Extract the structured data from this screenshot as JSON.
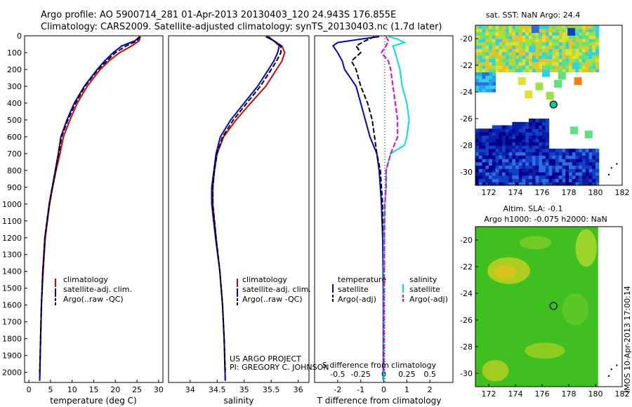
{
  "header": {
    "line1": "Argo profile: AO 5900714_281 01-Apr-2013 20130403_120 24.943S 176.855E",
    "line2": "Climatology: CARS2009. Satellite-adjusted climatology: synTS_20130403.nc (1.7d later)"
  },
  "colors": {
    "climatology": "#dd0000",
    "satellite": "#0000dd",
    "argo": "#000000",
    "cyan": "#00e0e0",
    "magenta": "#dd00dd"
  },
  "depth_ticks": [
    0,
    100,
    200,
    300,
    400,
    500,
    600,
    700,
    800,
    900,
    1000,
    1100,
    1200,
    1300,
    1400,
    1500,
    1600,
    1700,
    1800,
    1900,
    2000
  ],
  "chart_data": [
    {
      "type": "line",
      "name": "temperature-profile",
      "xlabel": "temperature (deg C)",
      "ylabel": "",
      "xlim": [
        -1,
        31
      ],
      "ylim": [
        2060,
        0
      ],
      "xticks": [
        0,
        5,
        10,
        15,
        20,
        25,
        30
      ],
      "legend": [
        "climatology",
        "satellite-adj. clim.",
        "Argo(..raw -QC)"
      ],
      "series": [
        {
          "key": "climatology",
          "depth": [
            5,
            30,
            60,
            100,
            150,
            200,
            300,
            400,
            500,
            600,
            700,
            800,
            900,
            1000,
            1200,
            1400,
            1600,
            1800,
            2050
          ],
          "values": [
            25.8,
            25.5,
            23.8,
            21.0,
            18.5,
            16.5,
            13.5,
            11.2,
            9.5,
            8.0,
            7.2,
            6.3,
            5.5,
            4.8,
            3.8,
            3.3,
            2.9,
            2.7,
            2.5
          ]
        },
        {
          "key": "satellite",
          "depth": [
            5,
            30,
            60,
            100,
            150,
            200,
            300,
            400,
            500,
            600,
            700,
            800,
            900,
            1000,
            1200,
            1400,
            1600,
            1800,
            2050
          ],
          "values": [
            25.6,
            24.5,
            21.5,
            19.5,
            17.5,
            15.8,
            12.8,
            10.5,
            8.8,
            7.4,
            6.8,
            6.1,
            5.4,
            4.7,
            3.7,
            3.2,
            2.9,
            2.7,
            2.5
          ]
        },
        {
          "key": "argo",
          "depth": [
            5,
            30,
            60,
            100,
            150,
            200,
            300,
            400,
            500,
            600,
            700,
            800,
            900,
            1000,
            1200,
            1400,
            1600,
            1800,
            2000
          ],
          "values": [
            25.7,
            25.0,
            22.5,
            20.0,
            18.0,
            16.0,
            13.0,
            10.8,
            9.0,
            7.6,
            6.9,
            6.2,
            5.4,
            4.7,
            3.7,
            3.2,
            2.9,
            2.7,
            2.5
          ]
        }
      ]
    },
    {
      "type": "line",
      "name": "salinity-profile",
      "xlabel": "salinity",
      "ylabel": "",
      "xlim": [
        33.6,
        36.2
      ],
      "ylim": [
        2060,
        0
      ],
      "xticks": [
        34,
        34.5,
        35,
        35.5,
        36
      ],
      "legend": [
        "climatology",
        "satellite-adj. clim.",
        "Argo(..raw -QC)"
      ],
      "annotations": [
        "US ARGO PROJECT",
        "PI: GREGORY C. JOHNSON"
      ],
      "series": [
        {
          "key": "climatology",
          "depth": [
            5,
            30,
            60,
            100,
            150,
            200,
            300,
            400,
            500,
            600,
            700,
            800,
            900,
            1000,
            1200,
            1400,
            1600,
            1800,
            2050
          ],
          "values": [
            35.45,
            35.55,
            35.7,
            35.75,
            35.7,
            35.6,
            35.4,
            35.12,
            34.85,
            34.62,
            34.5,
            34.45,
            34.42,
            34.42,
            34.48,
            34.55,
            34.6,
            34.63,
            34.65
          ]
        },
        {
          "key": "satellite",
          "depth": [
            5,
            30,
            60,
            100,
            150,
            200,
            300,
            400,
            500,
            600,
            700,
            800,
            900,
            1000,
            1200,
            1400,
            1600,
            1800,
            2050
          ],
          "values": [
            35.4,
            35.55,
            35.65,
            35.62,
            35.55,
            35.45,
            35.25,
            35.0,
            34.75,
            34.56,
            34.48,
            34.44,
            34.4,
            34.4,
            34.47,
            34.55,
            34.6,
            34.63,
            34.65
          ]
        },
        {
          "key": "argo",
          "depth": [
            5,
            30,
            60,
            100,
            150,
            200,
            300,
            400,
            500,
            600,
            700,
            800,
            900,
            1000,
            1200,
            1400,
            1600,
            1800,
            2000
          ],
          "values": [
            35.42,
            35.55,
            35.68,
            35.68,
            35.6,
            35.5,
            35.3,
            35.05,
            34.8,
            34.6,
            34.5,
            34.45,
            34.42,
            34.42,
            34.48,
            34.55,
            34.6,
            34.63,
            34.65
          ]
        }
      ]
    },
    {
      "type": "line",
      "name": "difference-profile",
      "xlabel": "T difference from climatology",
      "xlabel_top": "S difference from climatology",
      "xlim": [
        -3,
        3
      ],
      "ylim": [
        2060,
        0
      ],
      "xticks": [
        -2,
        -1,
        0,
        1,
        2
      ],
      "xticks_top_labels": [
        "-0.5",
        "-0.25",
        "0",
        "0.25",
        "0.5"
      ],
      "xticks_top_values": [
        -2,
        -1,
        0,
        1,
        2
      ],
      "legend_temperature_title": "temperature",
      "legend_salinity_title": "salinity",
      "legend_temperature": [
        "satellite",
        "Argo(-adj)"
      ],
      "legend_salinity": [
        "satellite",
        "Argo(-adj)"
      ],
      "series": [
        {
          "key": "t-satellite",
          "depth": [
            5,
            20,
            40,
            60,
            100,
            150,
            200,
            300,
            400,
            500,
            600,
            700,
            800,
            900,
            1000,
            1200,
            1400,
            1600,
            1800,
            2050
          ],
          "values": [
            -0.2,
            -1.0,
            -2.0,
            -2.2,
            -2.0,
            -1.8,
            -1.7,
            -1.2,
            -1.0,
            -0.8,
            -0.6,
            -0.3,
            -0.2,
            -0.15,
            -0.1,
            -0.05,
            -0.03,
            -0.02,
            -0.02,
            -0.02
          ]
        },
        {
          "key": "t-argo",
          "depth": [
            5,
            30,
            60,
            100,
            150,
            200,
            300,
            400,
            500,
            600,
            700,
            800,
            900,
            1000,
            1200,
            1400,
            1600,
            1800,
            2000
          ],
          "values": [
            -0.4,
            -0.8,
            -1.2,
            -1.0,
            -1.4,
            -1.2,
            -1.0,
            -0.7,
            -0.5,
            -0.4,
            -0.3,
            -0.15,
            -0.1,
            -0.05,
            -0.03,
            -0.02,
            -0.01,
            -0.01,
            -0.01
          ]
        },
        {
          "key": "s-satellite",
          "depth": [
            5,
            20,
            40,
            60,
            100,
            200,
            300,
            400,
            500,
            600,
            650,
            700,
            800,
            900,
            1000,
            1200,
            1400,
            1600,
            1800,
            2050
          ],
          "values": [
            0.2,
            0.6,
            0.9,
            0.4,
            0.5,
            0.7,
            0.8,
            1.0,
            1.1,
            1.0,
            0.9,
            0.3,
            0.1,
            0.1,
            0.05,
            0.0,
            0.0,
            0.0,
            0.0,
            0.0
          ]
        },
        {
          "key": "s-argo",
          "depth": [
            5,
            30,
            60,
            100,
            150,
            200,
            300,
            400,
            500,
            600,
            700,
            800,
            900,
            1000,
            1200,
            1400,
            1600,
            1800,
            2000
          ],
          "values": [
            0.1,
            0.2,
            0.1,
            -0.1,
            0.2,
            0.3,
            0.4,
            0.5,
            0.6,
            0.6,
            0.3,
            0.1,
            0.1,
            0.05,
            0.03,
            0.02,
            0.01,
            0.01,
            0.0
          ]
        }
      ]
    },
    {
      "type": "heatmap",
      "name": "sst-map",
      "title": "sat. SST: NaN Argo: 24.4",
      "xlim": [
        171,
        182
      ],
      "ylim": [
        -31,
        -19
      ],
      "xticks": [
        172,
        174,
        176,
        178,
        180,
        182
      ],
      "yticks": [
        -20,
        -22,
        -24,
        -26,
        -28,
        -30
      ],
      "argo_position": [
        176.855,
        -24.943
      ]
    },
    {
      "type": "heatmap",
      "name": "sla-map",
      "title": "Altim. SLA: -0.1",
      "subtitle": "Argo h1000: -0.075 h2000: NaN",
      "xlim": [
        171,
        182
      ],
      "ylim": [
        -31,
        -19
      ],
      "xticks": [
        172,
        174,
        176,
        178,
        180,
        182
      ],
      "yticks": [
        -20,
        -22,
        -24,
        -26,
        -28,
        -30
      ],
      "argo_position": [
        176.855,
        -24.943
      ]
    }
  ],
  "footer_stamp": "IMOS 10-Apr-2013 17:00:14"
}
